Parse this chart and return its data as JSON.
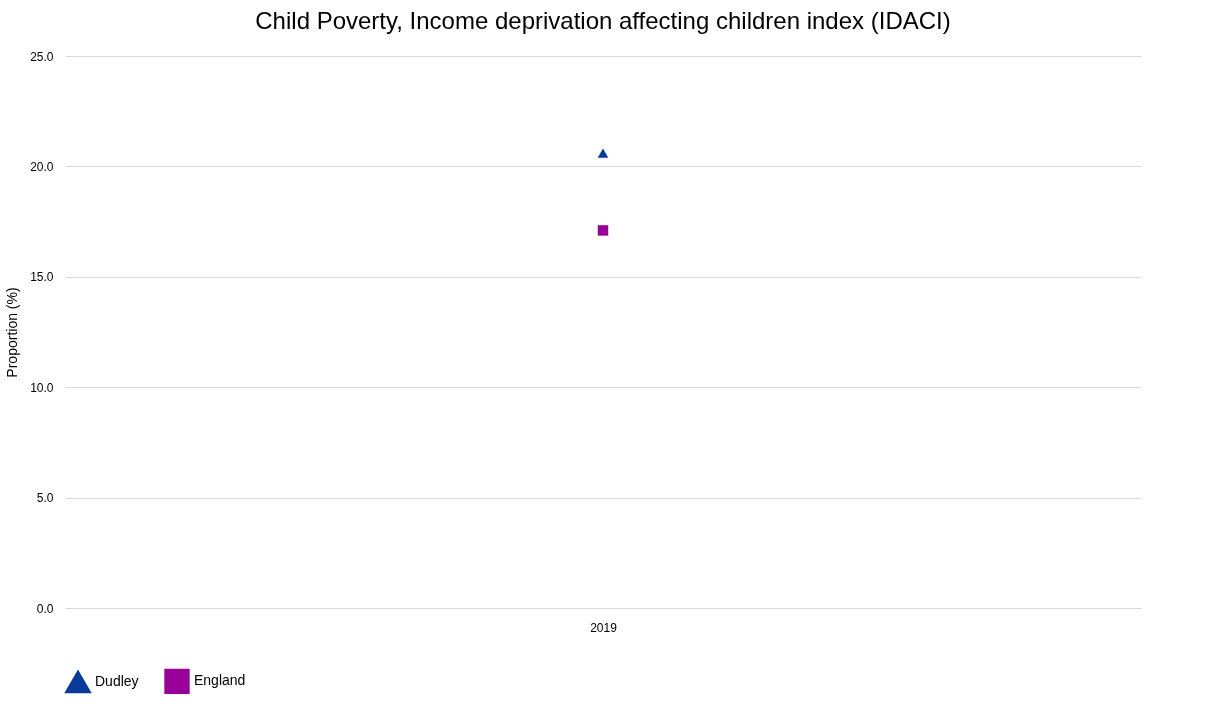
{
  "chart_data": {
    "type": "line",
    "title": "Child Poverty, Income deprivation affecting children index (IDACI)",
    "ylabel": "Proportion (%)",
    "categories": [
      "2019"
    ],
    "series": [
      {
        "name": "Dudley",
        "color": "#0b3a9a",
        "values": [
          20.6
        ],
        "marker": "triangle"
      },
      {
        "name": "England",
        "color": "#990099",
        "values": [
          17.1
        ],
        "marker": "square"
      }
    ],
    "ylim": [
      0,
      25
    ],
    "yticks": [
      {
        "value": 0,
        "label": "0.0"
      },
      {
        "value": 5,
        "label": "5.0"
      },
      {
        "value": 10,
        "label": "10.0"
      },
      {
        "value": 15,
        "label": "15.0"
      },
      {
        "value": 20,
        "label": "20.0"
      },
      {
        "value": 25,
        "label": "25.0"
      }
    ],
    "grid": "y",
    "legend": "bottom"
  }
}
